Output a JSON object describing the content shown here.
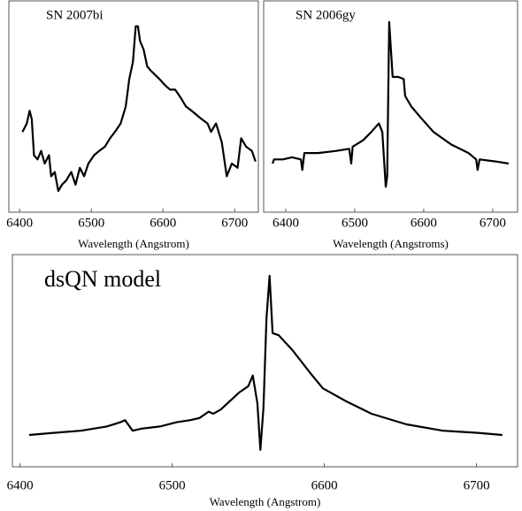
{
  "chart_data": [
    {
      "type": "line",
      "title": "SN 2007bi",
      "x_label": "Wavelength (Angstrom)",
      "color": "#000000",
      "x": [
        6404,
        6410,
        6414,
        6417,
        6420,
        6425,
        6430,
        6435,
        6441,
        6444,
        6449,
        6454,
        6459,
        6465,
        6472,
        6478,
        6484,
        6490,
        6496,
        6504,
        6511,
        6519,
        6526,
        6533,
        6541,
        6548,
        6553,
        6558,
        6562,
        6565,
        6568,
        6573,
        6578,
        6583,
        6589,
        6595,
        6603,
        6610,
        6617,
        6625,
        6632,
        6640,
        6647,
        6654,
        6662,
        6667,
        6674,
        6682,
        6689,
        6696,
        6704,
        6709,
        6716,
        6724,
        6729
      ],
      "values": [
        0.38,
        0.42,
        0.48,
        0.44,
        0.27,
        0.25,
        0.29,
        0.23,
        0.27,
        0.17,
        0.19,
        0.1,
        0.13,
        0.15,
        0.19,
        0.13,
        0.21,
        0.17,
        0.23,
        0.27,
        0.29,
        0.31,
        0.35,
        0.38,
        0.42,
        0.5,
        0.63,
        0.71,
        0.88,
        0.88,
        0.81,
        0.77,
        0.69,
        0.67,
        0.65,
        0.63,
        0.6,
        0.58,
        0.58,
        0.54,
        0.5,
        0.48,
        0.46,
        0.44,
        0.42,
        0.38,
        0.42,
        0.33,
        0.17,
        0.23,
        0.21,
        0.35,
        0.31,
        0.29,
        0.24
      ],
      "xlim": [
        6385,
        6733
      ],
      "xticks": [
        6400,
        6500,
        6600,
        6700
      ],
      "ylim": [
        0,
        1
      ]
    },
    {
      "type": "line",
      "title": "SN 2006gy",
      "x_label": "Wavelength (Angstroms)",
      "color": "#000000",
      "x": [
        6381,
        6383,
        6396,
        6409,
        6422,
        6424,
        6427,
        6447,
        6473,
        6492,
        6495,
        6497,
        6512,
        6524,
        6535,
        6540,
        6545,
        6547,
        6550,
        6553,
        6555,
        6563,
        6571,
        6573,
        6582,
        6595,
        6614,
        6640,
        6665,
        6676,
        6678,
        6681,
        6704,
        6723
      ],
      "values": [
        0.23,
        0.25,
        0.25,
        0.26,
        0.25,
        0.2,
        0.28,
        0.28,
        0.29,
        0.3,
        0.23,
        0.31,
        0.34,
        0.38,
        0.42,
        0.38,
        0.12,
        0.17,
        0.9,
        0.74,
        0.64,
        0.64,
        0.63,
        0.55,
        0.5,
        0.45,
        0.38,
        0.32,
        0.28,
        0.25,
        0.2,
        0.25,
        0.24,
        0.23
      ],
      "xlim": [
        6368,
        6736
      ],
      "xticks": [
        6400,
        6500,
        6600,
        6700
      ],
      "ylim": [
        0,
        1
      ]
    },
    {
      "type": "line",
      "title": "dsQN model",
      "x_label": "Wavelength (Angstrom)",
      "color": "#000000",
      "x": [
        6406,
        6422,
        6440,
        6457,
        6466,
        6469,
        6474,
        6480,
        6492,
        6503,
        6512,
        6518,
        6524,
        6527,
        6532,
        6538,
        6544,
        6550,
        6553,
        6556,
        6558,
        6560,
        6562,
        6564,
        6566,
        6570,
        6579,
        6591,
        6599,
        6614,
        6631,
        6654,
        6678,
        6701,
        6717
      ],
      "values": [
        0.15,
        0.16,
        0.17,
        0.19,
        0.21,
        0.22,
        0.17,
        0.18,
        0.19,
        0.21,
        0.22,
        0.23,
        0.26,
        0.25,
        0.27,
        0.31,
        0.35,
        0.38,
        0.43,
        0.3,
        0.08,
        0.28,
        0.7,
        0.9,
        0.63,
        0.62,
        0.55,
        0.44,
        0.37,
        0.31,
        0.25,
        0.2,
        0.17,
        0.16,
        0.15
      ],
      "xlim": [
        6395,
        6727
      ],
      "xticks": [
        6400,
        6500,
        6600,
        6700
      ],
      "ylim": [
        0,
        1
      ]
    }
  ]
}
